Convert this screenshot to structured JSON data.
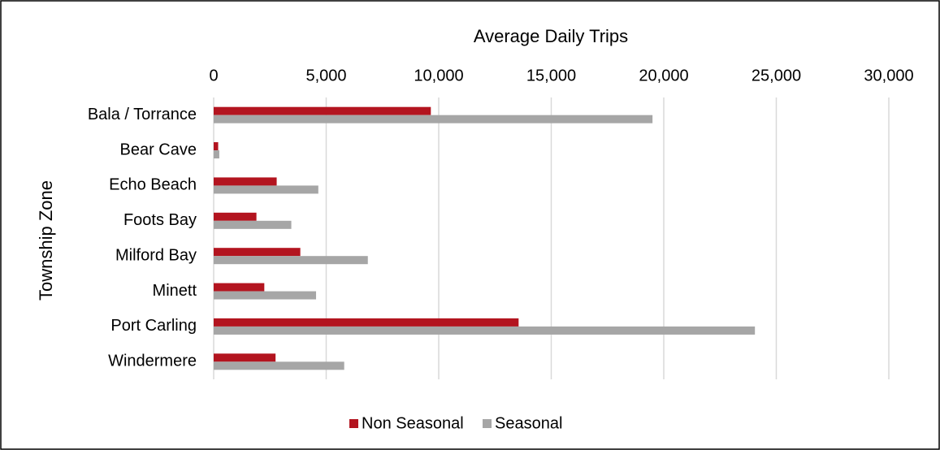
{
  "chart_data": {
    "type": "hbar",
    "title": "Average Daily Trips",
    "y_label": "Township Zone",
    "categories": [
      "Bala / Torrance",
      "Bear Cave",
      "Echo Beach",
      "Foots Bay",
      "Milford Bay",
      "Minett",
      "Port Carling",
      "Windermere"
    ],
    "series": [
      {
        "name": "Non Seasonal",
        "color": "#b3141f",
        "values": [
          9650,
          200,
          2800,
          1900,
          3850,
          2250,
          13550,
          2750
        ]
      },
      {
        "name": "Seasonal",
        "color": "#a6a6a6",
        "values": [
          19500,
          250,
          4650,
          3450,
          6850,
          4550,
          24050,
          5800
        ]
      }
    ],
    "xlim": [
      0,
      30000
    ],
    "xticks": [
      0,
      {
        "value": 5000,
        "label": "5,000"
      },
      {
        "value": 10000,
        "label": "10,000"
      },
      {
        "value": 15000,
        "label": "15,000"
      },
      {
        "value": 20000,
        "label": "20,000"
      },
      {
        "value": 25000,
        "label": "25,000"
      },
      {
        "value": 30000,
        "label": "30,000"
      }
    ],
    "grid": true,
    "legend": "bottom"
  }
}
